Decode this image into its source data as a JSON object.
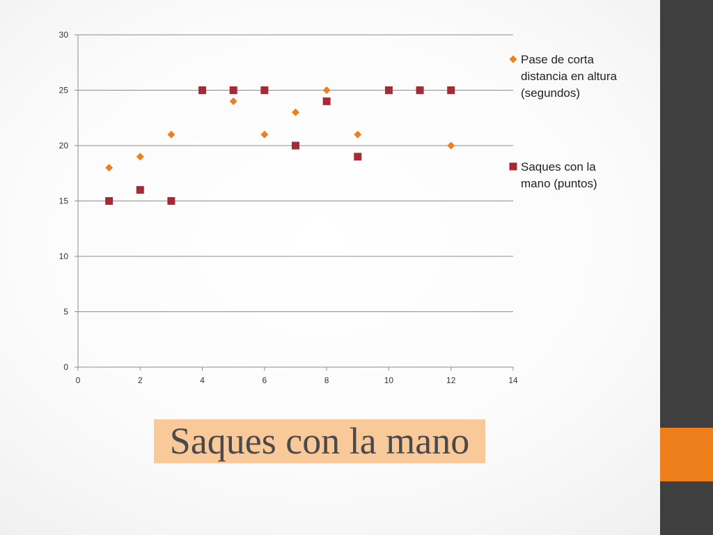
{
  "slide": {
    "title": "Saques con la mano",
    "colors": {
      "sidebar": "#3f3f3f",
      "sidebar_accent": "#ef7f1a",
      "title_highlight": "#f9c99a",
      "title_text": "#4a4a4a"
    }
  },
  "chart_data": {
    "type": "scatter",
    "title": "",
    "xlabel": "",
    "ylabel": "",
    "xlim": [
      0,
      14
    ],
    "ylim": [
      0,
      30
    ],
    "xticks": [
      0,
      2,
      4,
      6,
      8,
      10,
      12,
      14
    ],
    "yticks": [
      0,
      5,
      10,
      15,
      20,
      25,
      30
    ],
    "grid": "horizontal",
    "legend_position": "right",
    "series": [
      {
        "name": "Pase de corta distancia en altura (segundos)",
        "legend_lines": [
          "Pase de corta",
          "distancia en altura",
          "(segundos)"
        ],
        "marker": "diamond",
        "color": "#ef7f1a",
        "points": [
          {
            "x": 1,
            "y": 18
          },
          {
            "x": 2,
            "y": 19
          },
          {
            "x": 3,
            "y": 21
          },
          {
            "x": 4,
            "y": 25
          },
          {
            "x": 5,
            "y": 24
          },
          {
            "x": 6,
            "y": 21
          },
          {
            "x": 7,
            "y": 23
          },
          {
            "x": 8,
            "y": 25
          },
          {
            "x": 9,
            "y": 21
          },
          {
            "x": 10,
            "y": 25
          },
          {
            "x": 11,
            "y": 25
          },
          {
            "x": 12,
            "y": 20
          }
        ]
      },
      {
        "name": "Saques con la mano (puntos)",
        "legend_lines": [
          "Saques con la",
          "mano (puntos)"
        ],
        "marker": "square",
        "color": "#a52a35",
        "points": [
          {
            "x": 1,
            "y": 15
          },
          {
            "x": 2,
            "y": 16
          },
          {
            "x": 3,
            "y": 15
          },
          {
            "x": 4,
            "y": 25
          },
          {
            "x": 5,
            "y": 25
          },
          {
            "x": 6,
            "y": 25
          },
          {
            "x": 7,
            "y": 20
          },
          {
            "x": 8,
            "y": 24
          },
          {
            "x": 9,
            "y": 19
          },
          {
            "x": 10,
            "y": 25
          },
          {
            "x": 11,
            "y": 25
          },
          {
            "x": 12,
            "y": 25
          }
        ]
      }
    ]
  }
}
